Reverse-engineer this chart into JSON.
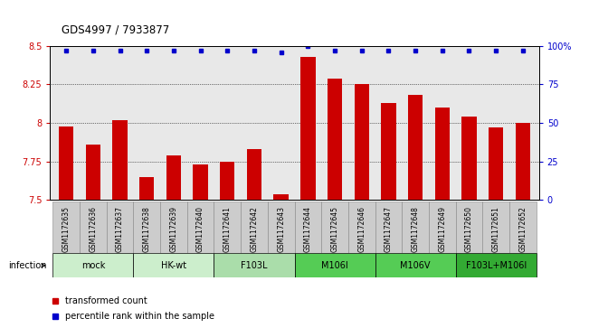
{
  "title": "GDS4997 / 7933877",
  "samples": [
    "GSM1172635",
    "GSM1172636",
    "GSM1172637",
    "GSM1172638",
    "GSM1172639",
    "GSM1172640",
    "GSM1172641",
    "GSM1172642",
    "GSM1172643",
    "GSM1172644",
    "GSM1172645",
    "GSM1172646",
    "GSM1172647",
    "GSM1172648",
    "GSM1172649",
    "GSM1172650",
    "GSM1172651",
    "GSM1172652"
  ],
  "bar_values": [
    7.98,
    7.86,
    8.02,
    7.65,
    7.79,
    7.73,
    7.75,
    7.83,
    7.54,
    8.43,
    8.29,
    8.25,
    8.13,
    8.18,
    8.1,
    8.04,
    7.97,
    8.0
  ],
  "percentile_values": [
    97,
    97,
    97,
    97,
    97,
    97,
    97,
    97,
    96,
    100,
    97,
    97,
    97,
    97,
    97,
    97,
    97,
    97
  ],
  "bar_color": "#cc0000",
  "dot_color": "#0000cc",
  "ylim_left": [
    7.5,
    8.5
  ],
  "ylim_right": [
    0,
    100
  ],
  "yticks_left": [
    7.5,
    7.75,
    8.0,
    8.25,
    8.5
  ],
  "ytick_labels_left": [
    "7.5",
    "7.75",
    "8",
    "8.25",
    "8.5"
  ],
  "yticks_right": [
    0,
    25,
    50,
    75,
    100
  ],
  "ytick_labels_right": [
    "0",
    "25",
    "50",
    "75",
    "100%"
  ],
  "group_configs": [
    {
      "label": "mock",
      "start": 0,
      "end": 2,
      "color": "#cceecc"
    },
    {
      "label": "HK-wt",
      "start": 3,
      "end": 5,
      "color": "#cceecc"
    },
    {
      "label": "F103L",
      "start": 6,
      "end": 8,
      "color": "#aaddaa"
    },
    {
      "label": "M106I",
      "start": 9,
      "end": 11,
      "color": "#55cc55"
    },
    {
      "label": "M106V",
      "start": 12,
      "end": 14,
      "color": "#55cc55"
    },
    {
      "label": "F103L+M106I",
      "start": 15,
      "end": 17,
      "color": "#33aa33"
    }
  ],
  "infection_label": "infection",
  "legend_items": [
    {
      "color": "#cc0000",
      "label": "transformed count"
    },
    {
      "color": "#0000cc",
      "label": "percentile rank within the sample"
    }
  ],
  "sample_box_color": "#cccccc",
  "sample_box_edge": "#888888"
}
